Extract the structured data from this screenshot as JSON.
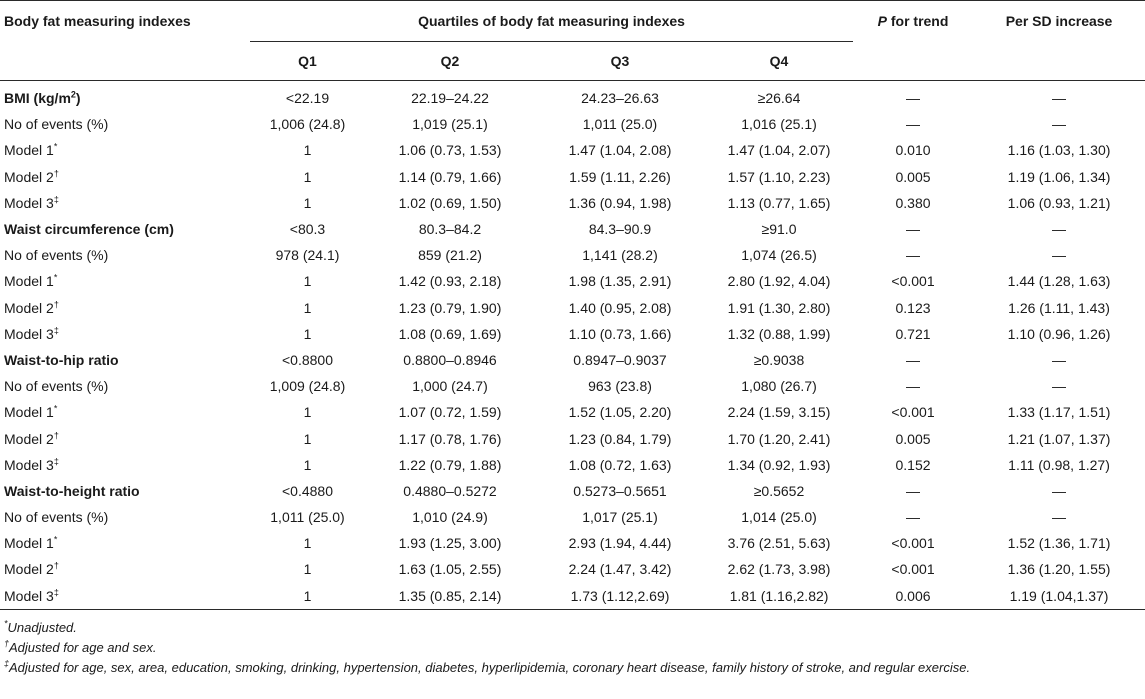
{
  "header": {
    "col_index": "Body fat measuring indexes",
    "quartiles_title": "Quartiles of body fat measuring indexes",
    "p_italic": "P",
    "p_rest": " for trend",
    "per_sd": "Per SD increase",
    "q1": "Q1",
    "q2": "Q2",
    "q3": "Q3",
    "q4": "Q4"
  },
  "rows": [
    {
      "type": "section",
      "label": "BMI (kg/m",
      "sup": "2",
      "label_after": ")",
      "q1": "<22.19",
      "q2": "22.19–24.22",
      "q3": "24.23–26.63",
      "q4": "≥26.64",
      "p": "—",
      "sd": "—"
    },
    {
      "type": "data",
      "label": "No of events (%)",
      "sup": "",
      "q1": "1,006 (24.8)",
      "q2": "1,019 (25.1)",
      "q3": "1,011 (25.0)",
      "q4": "1,016 (25.1)",
      "p": "—",
      "sd": "—"
    },
    {
      "type": "data",
      "label": "Model 1",
      "sup": "*",
      "q1": "1",
      "q2": "1.06 (0.73, 1.53)",
      "q3": "1.47 (1.04, 2.08)",
      "q4": "1.47 (1.04, 2.07)",
      "p": "0.010",
      "sd": "1.16 (1.03, 1.30)"
    },
    {
      "type": "data",
      "label": "Model 2",
      "sup": "†",
      "q1": "1",
      "q2": "1.14 (0.79, 1.66)",
      "q3": "1.59 (1.11, 2.26)",
      "q4": "1.57 (1.10, 2.23)",
      "p": "0.005",
      "sd": "1.19 (1.06, 1.34)"
    },
    {
      "type": "data",
      "label": "Model 3",
      "sup": "‡",
      "q1": "1",
      "q2": "1.02 (0.69, 1.50)",
      "q3": "1.36 (0.94, 1.98)",
      "q4": "1.13 (0.77, 1.65)",
      "p": "0.380",
      "sd": "1.06 (0.93, 1.21)"
    },
    {
      "type": "section",
      "label": "Waist circumference (cm)",
      "sup": "",
      "label_after": "",
      "q1": "<80.3",
      "q2": "80.3–84.2",
      "q3": "84.3–90.9",
      "q4": "≥91.0",
      "p": "—",
      "sd": "—"
    },
    {
      "type": "data",
      "label": "No of events (%)",
      "sup": "",
      "q1": "978 (24.1)",
      "q2": "859 (21.2)",
      "q3": "1,141 (28.2)",
      "q4": "1,074 (26.5)",
      "p": "—",
      "sd": "—"
    },
    {
      "type": "data",
      "label": "Model 1",
      "sup": "*",
      "q1": "1",
      "q2": "1.42 (0.93, 2.18)",
      "q3": "1.98 (1.35, 2.91)",
      "q4": "2.80 (1.92, 4.04)",
      "p": "<0.001",
      "sd": "1.44 (1.28, 1.63)"
    },
    {
      "type": "data",
      "label": "Model 2",
      "sup": "†",
      "q1": "1",
      "q2": "1.23 (0.79, 1.90)",
      "q3": "1.40 (0.95, 2.08)",
      "q4": "1.91 (1.30, 2.80)",
      "p": "0.123",
      "sd": "1.26 (1.11, 1.43)"
    },
    {
      "type": "data",
      "label": "Model 3",
      "sup": "‡",
      "q1": "1",
      "q2": "1.08 (0.69, 1.69)",
      "q3": "1.10 (0.73, 1.66)",
      "q4": "1.32 (0.88, 1.99)",
      "p": "0.721",
      "sd": "1.10 (0.96, 1.26)"
    },
    {
      "type": "section",
      "label": "Waist-to-hip ratio",
      "sup": "",
      "label_after": "",
      "q1": "<0.8800",
      "q2": "0.8800–0.8946",
      "q3": "0.8947–0.9037",
      "q4": "≥0.9038",
      "p": "—",
      "sd": "—"
    },
    {
      "type": "data",
      "label": "No of events (%)",
      "sup": "",
      "q1": "1,009 (24.8)",
      "q2": "1,000 (24.7)",
      "q3": "963 (23.8)",
      "q4": "1,080 (26.7)",
      "p": "—",
      "sd": "—"
    },
    {
      "type": "data",
      "label": "Model 1",
      "sup": "*",
      "q1": "1",
      "q2": "1.07 (0.72, 1.59)",
      "q3": "1.52 (1.05, 2.20)",
      "q4": "2.24 (1.59, 3.15)",
      "p": "<0.001",
      "sd": "1.33 (1.17, 1.51)"
    },
    {
      "type": "data",
      "label": "Model 2",
      "sup": "†",
      "q1": "1",
      "q2": "1.17 (0.78, 1.76)",
      "q3": "1.23 (0.84, 1.79)",
      "q4": "1.70 (1.20, 2.41)",
      "p": "0.005",
      "sd": "1.21 (1.07, 1.37)"
    },
    {
      "type": "data",
      "label": "Model 3",
      "sup": "‡",
      "q1": "1",
      "q2": "1.22 (0.79, 1.88)",
      "q3": "1.08 (0.72, 1.63)",
      "q4": "1.34 (0.92, 1.93)",
      "p": "0.152",
      "sd": "1.11 (0.98, 1.27)"
    },
    {
      "type": "section",
      "label": "Waist-to-height ratio",
      "sup": "",
      "label_after": "",
      "q1": "<0.4880",
      "q2": "0.4880–0.5272",
      "q3": "0.5273–0.5651",
      "q4": "≥0.5652",
      "p": "—",
      "sd": "—"
    },
    {
      "type": "data",
      "label": "No of events (%)",
      "sup": "",
      "q1": "1,011 (25.0)",
      "q2": "1,010 (24.9)",
      "q3": "1,017 (25.1)",
      "q4": "1,014 (25.0)",
      "p": "—",
      "sd": "—"
    },
    {
      "type": "data",
      "label": "Model 1",
      "sup": "*",
      "q1": "1",
      "q2": "1.93 (1.25, 3.00)",
      "q3": "2.93 (1.94, 4.44)",
      "q4": "3.76 (2.51, 5.63)",
      "p": "<0.001",
      "sd": "1.52 (1.36, 1.71)"
    },
    {
      "type": "data",
      "label": "Model 2",
      "sup": "†",
      "q1": "1",
      "q2": "1.63 (1.05, 2.55)",
      "q3": "2.24 (1.47, 3.42)",
      "q4": "2.62 (1.73, 3.98)",
      "p": "<0.001",
      "sd": "1.36 (1.20, 1.55)"
    },
    {
      "type": "data",
      "label": "Model 3",
      "sup": "‡",
      "q1": "1",
      "q2": "1.35 (0.85, 2.14)",
      "q3": "1.73 (1.12,2.69)",
      "q4": "1.81 (1.16,2.82)",
      "p": "0.006",
      "sd": "1.19 (1.04,1.37)"
    }
  ],
  "footnotes": [
    {
      "mark": "*",
      "text": "Unadjusted."
    },
    {
      "mark": "†",
      "text": "Adjusted for age and sex."
    },
    {
      "mark": "‡",
      "text": "Adjusted for age, sex, area, education, smoking, drinking, hypertension, diabetes, hyperlipidemia, coronary heart disease, family history of stroke, and regular exercise."
    }
  ]
}
